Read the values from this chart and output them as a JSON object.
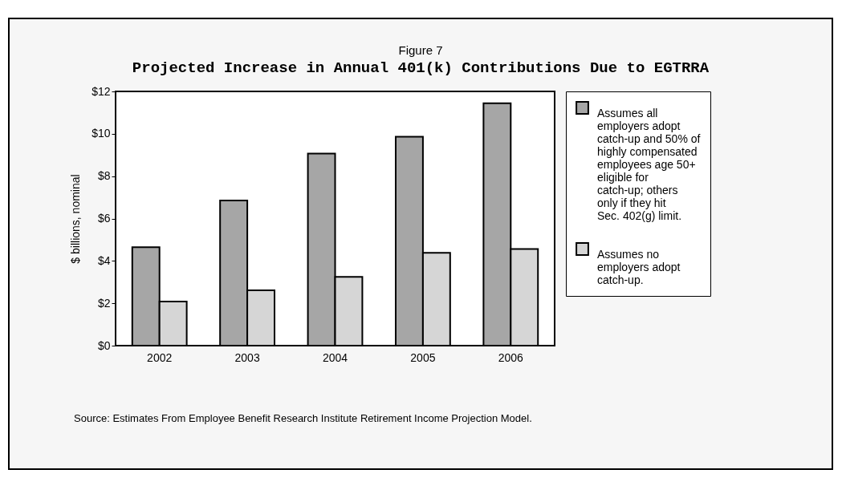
{
  "chart_data": {
    "type": "bar",
    "subtitle": "Figure 7",
    "title": "Projected Increase in Annual 401(k) Contributions Due to EGTRRA",
    "ylabel": "$ billions, nominal",
    "categories": [
      "2002",
      "2003",
      "2004",
      "2005",
      "2006"
    ],
    "series": [
      {
        "name": "Assumes all employers adopt catch-up and 50% of highly compensated employees age 50+ eligible for catch-up; others only if they hit Sec. 402(g) limit.",
        "color": "#a6a6a6",
        "values": [
          4.65,
          6.85,
          9.07,
          9.86,
          11.44
        ]
      },
      {
        "name": "Assumes no employers adopt catch-up.",
        "color": "#d6d6d6",
        "values": [
          2.08,
          2.61,
          3.25,
          4.38,
          4.56
        ]
      }
    ],
    "ylim": [
      0,
      12
    ],
    "yticks": [
      {
        "value": 0,
        "label": "$0"
      },
      {
        "value": 2,
        "label": "$2"
      },
      {
        "value": 4,
        "label": "$4"
      },
      {
        "value": 6,
        "label": "$6"
      },
      {
        "value": 8,
        "label": "$8"
      },
      {
        "value": 10,
        "label": "$10"
      },
      {
        "value": 12,
        "label": "$12"
      }
    ],
    "grid": false,
    "legend": "right",
    "annotations": [
      "Source: Estimates From Employee Benefit Research Institute Retirement Income Projection Model."
    ]
  }
}
